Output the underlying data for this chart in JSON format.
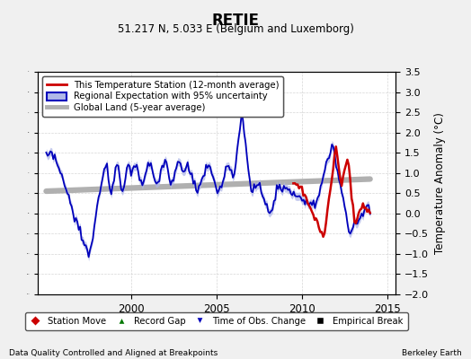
{
  "title": "RETIE",
  "subtitle": "51.217 N, 5.033 E (Belgium and Luxemborg)",
  "ylabel": "Temperature Anomaly (°C)",
  "xlabel_bottom_left": "Data Quality Controlled and Aligned at Breakpoints",
  "xlabel_bottom_right": "Berkeley Earth",
  "xlim": [
    1994.5,
    2015.5
  ],
  "ylim": [
    -2.0,
    3.5
  ],
  "yticks": [
    -2,
    -1.5,
    -1,
    -0.5,
    0,
    0.5,
    1,
    1.5,
    2,
    2.5,
    3,
    3.5
  ],
  "xticks": [
    2000,
    2005,
    2010,
    2015
  ],
  "background_color": "#f0f0f0",
  "plot_bg_color": "#ffffff",
  "legend1_labels": [
    "This Temperature Station (12-month average)",
    "Regional Expectation with 95% uncertainty",
    "Global Land (5-year average)"
  ],
  "legend2_labels": [
    "Station Move",
    "Record Gap",
    "Time of Obs. Change",
    "Empirical Break"
  ],
  "red_line_color": "#cc0000",
  "blue_line_color": "#0000bb",
  "blue_fill_color": "#b0b8e8",
  "gray_line_color": "#b0b0b0",
  "station_move_color": "#cc0000",
  "record_gap_color": "#007700",
  "time_obs_marker_color": "#0000bb",
  "empirical_break_color": "#000000",
  "grid_color": "#cccccc"
}
